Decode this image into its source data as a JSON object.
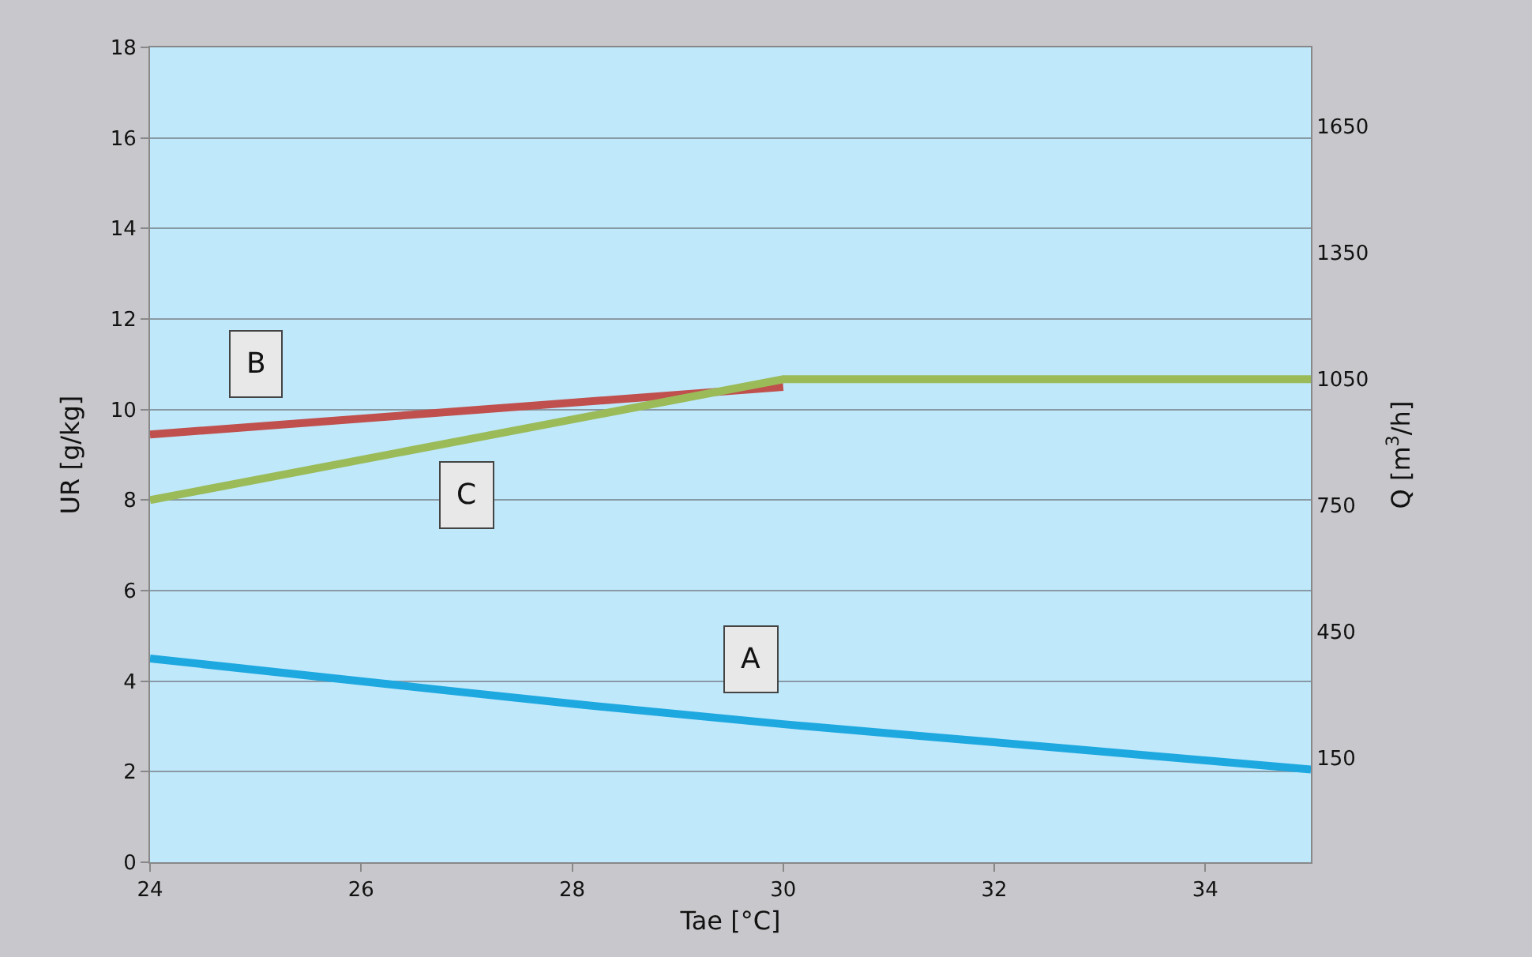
{
  "chart_data": {
    "type": "line",
    "xlabel": "Tae [°C]",
    "ylabel": "UR [g/kg]",
    "y2label": "Q [m$^{3}$/h]",
    "xlim": [
      24,
      35
    ],
    "xticks": [
      24,
      26,
      28,
      30,
      32,
      34
    ],
    "ylim": [
      0,
      18
    ],
    "yticks": [
      0,
      2,
      4,
      6,
      8,
      10,
      12,
      14,
      16,
      18
    ],
    "y2lim": [
      -97,
      1838
    ],
    "y2ticks": [
      150,
      450,
      750,
      1050,
      1350,
      1650
    ],
    "grid": "y",
    "series": [
      {
        "color": "#1ea8e0",
        "x": [
          24,
          26,
          28,
          30,
          32,
          34,
          35
        ],
        "values": [
          4.5,
          4.0,
          3.5,
          3.05,
          2.65,
          2.25,
          2.05
        ]
      },
      {
        "color": "#c0504d",
        "x": [
          24,
          30
        ],
        "values": [
          9.45,
          10.5
        ]
      },
      {
        "color": "#9bbb59",
        "axis": "y2",
        "x": [
          24,
          30,
          35
        ],
        "values": [
          763,
          1050,
          1050
        ]
      }
    ],
    "annotations": [
      {
        "text": "A",
        "x": 29.7,
        "y": 4.5
      },
      {
        "text": "B",
        "x": 25,
        "y": 11
      },
      {
        "text": "C",
        "x": 27,
        "y": 8.1
      }
    ]
  }
}
